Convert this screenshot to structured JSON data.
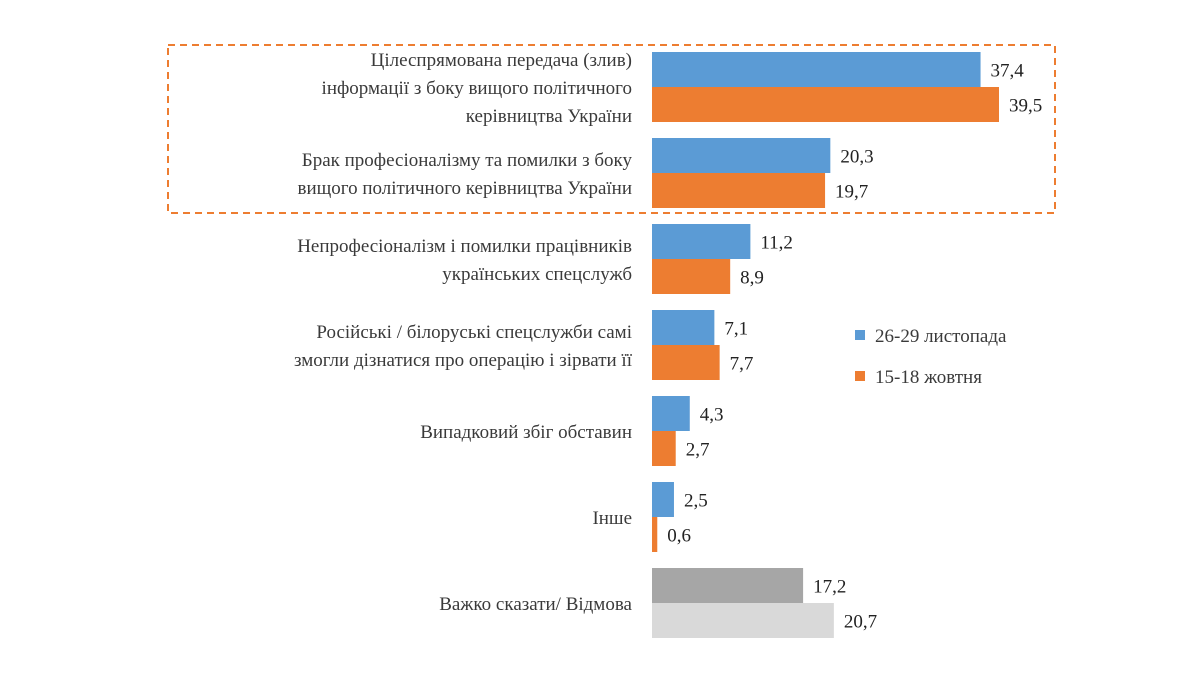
{
  "chart_data": {
    "type": "bar",
    "orientation": "horizontal",
    "categories": [
      [
        "Цілеспрямована передача (злив)",
        "інформації з боку вищого політичного",
        "керівництва України"
      ],
      [
        "Брак професіоналізму та помилки з боку",
        "вищого політичного керівництва України"
      ],
      [
        "Непрофесіоналізм і помилки працівників",
        "українських спецслужб"
      ],
      [
        "Російські / білоруські спецслужби самі",
        "змогли дізнатися про операцію і зірвати її"
      ],
      [
        "Випадковий збіг обставин"
      ],
      [
        "Інше"
      ],
      [
        "Важко сказати/ Відмова"
      ]
    ],
    "series": [
      {
        "name": "26-29 листопада",
        "values": [
          37.4,
          20.3,
          11.2,
          7.1,
          4.3,
          2.5,
          17.2
        ],
        "labels": [
          "37,4",
          "20,3",
          "11,2",
          "7,1",
          "4,3",
          "2,5",
          "17,2"
        ],
        "color": "#5b9bd5",
        "last_color": "#a6a6a6"
      },
      {
        "name": "15-18 жовтня",
        "values": [
          39.5,
          19.7,
          8.9,
          7.7,
          2.7,
          0.6,
          20.7
        ],
        "labels": [
          "39,5",
          "19,7",
          "8,9",
          "7,7",
          "2,7",
          "0,6",
          "20,7"
        ],
        "color": "#ed7d31",
        "last_color": "#d9d9d9"
      }
    ],
    "xlim": [
      0,
      40
    ],
    "grid": false,
    "legend_position": "right",
    "highlight_box_color": "#ed7d31"
  }
}
